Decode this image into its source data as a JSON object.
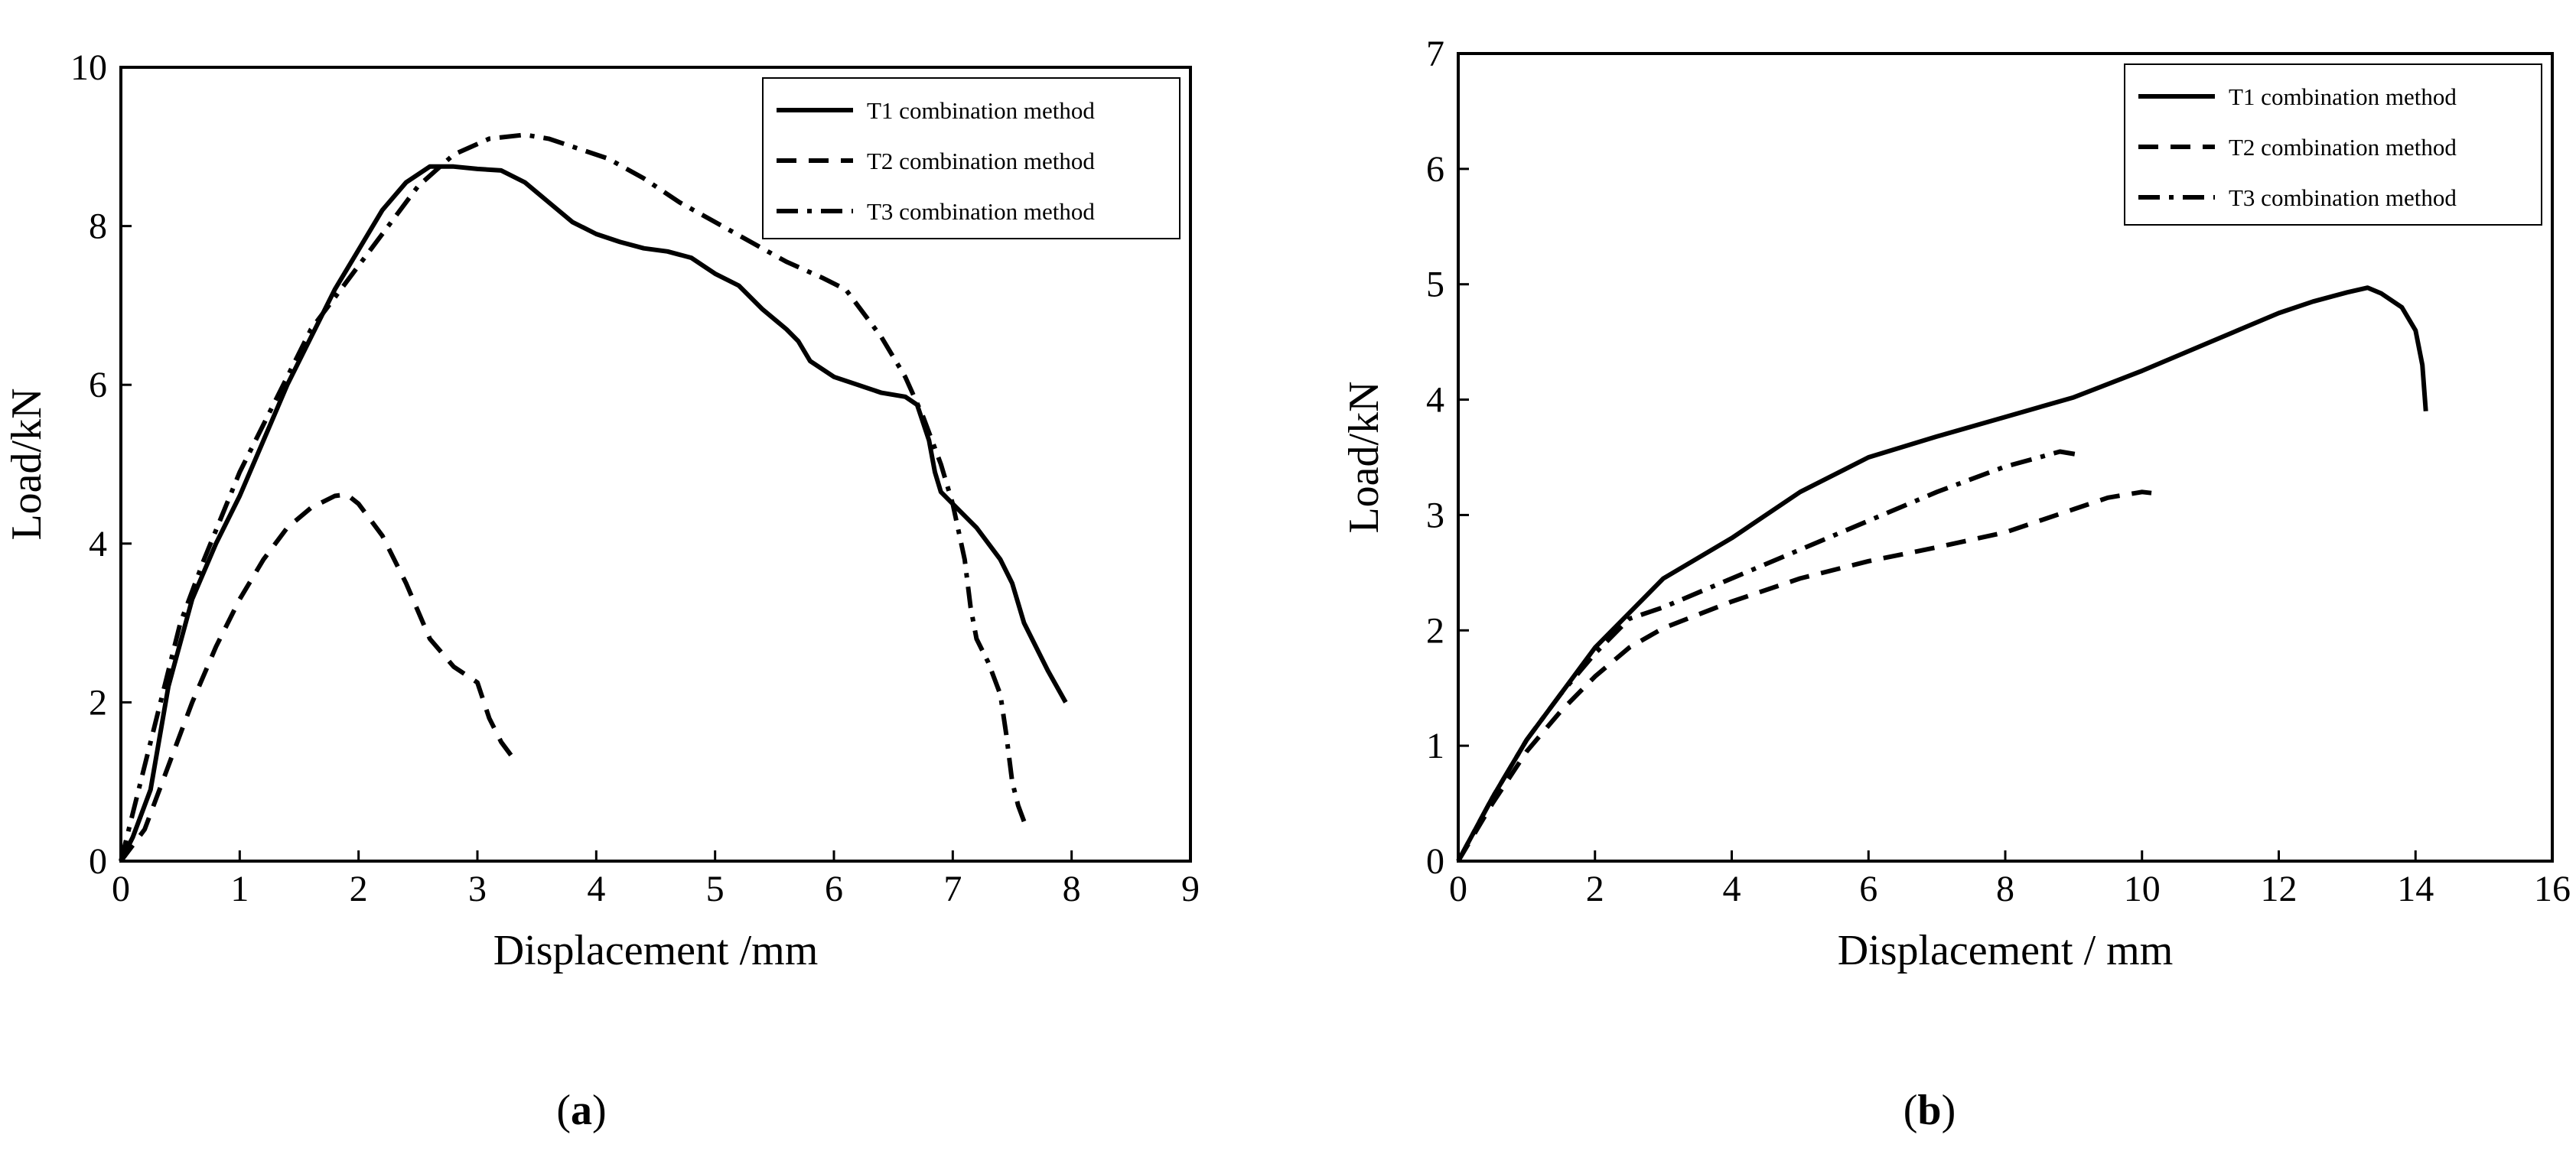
{
  "chart_data": [
    {
      "type": "line",
      "caption_open": "(",
      "caption_letter": "a",
      "caption_close": ")",
      "xlabel": "Displacement /mm",
      "ylabel": "Load/kN",
      "xlim": [
        0,
        9
      ],
      "ylim": [
        0,
        10
      ],
      "xticks": [
        0,
        1,
        2,
        3,
        4,
        5,
        6,
        7,
        8,
        9
      ],
      "yticks": [
        0,
        2,
        4,
        6,
        8,
        10
      ],
      "legend": "top-right",
      "grid": false,
      "series": [
        {
          "name": "T1 combination method",
          "style": "solid",
          "x": [
            0,
            0.1,
            0.25,
            0.4,
            0.6,
            0.8,
            1.0,
            1.2,
            1.4,
            1.6,
            1.8,
            2.0,
            2.2,
            2.4,
            2.6,
            2.8,
            3.0,
            3.2,
            3.4,
            3.6,
            3.8,
            4.0,
            4.2,
            4.4,
            4.6,
            4.8,
            4.9,
            5.0,
            5.2,
            5.4,
            5.6,
            5.7,
            5.8,
            6.0,
            6.2,
            6.4,
            6.6,
            6.7,
            6.8,
            6.85,
            6.9,
            7.0,
            7.2,
            7.4,
            7.5,
            7.6,
            7.8,
            7.95
          ],
          "y": [
            0,
            0.3,
            0.9,
            2.2,
            3.3,
            4.0,
            4.6,
            5.3,
            6.0,
            6.6,
            7.2,
            7.7,
            8.2,
            8.55,
            8.75,
            8.75,
            8.72,
            8.7,
            8.55,
            8.3,
            8.05,
            7.9,
            7.8,
            7.72,
            7.68,
            7.6,
            7.5,
            7.4,
            7.25,
            6.95,
            6.7,
            6.55,
            6.3,
            6.1,
            6.0,
            5.9,
            5.85,
            5.75,
            5.3,
            4.9,
            4.65,
            4.5,
            4.2,
            3.8,
            3.5,
            3.0,
            2.4,
            2.0
          ]
        },
        {
          "name": "T2 combination method",
          "style": "dashed",
          "x": [
            0,
            0.2,
            0.4,
            0.6,
            0.8,
            1.0,
            1.2,
            1.4,
            1.6,
            1.8,
            1.9,
            2.0,
            2.2,
            2.4,
            2.6,
            2.8,
            3.0,
            3.1,
            3.2,
            3.3
          ],
          "y": [
            0,
            0.4,
            1.2,
            2.0,
            2.7,
            3.3,
            3.8,
            4.2,
            4.45,
            4.6,
            4.62,
            4.5,
            4.1,
            3.5,
            2.8,
            2.45,
            2.25,
            1.8,
            1.5,
            1.3
          ]
        },
        {
          "name": "T3 combination method",
          "style": "dashdot",
          "x": [
            0,
            0.1,
            0.3,
            0.5,
            0.7,
            1.0,
            1.3,
            1.6,
            1.9,
            2.2,
            2.5,
            2.8,
            3.1,
            3.4,
            3.6,
            3.8,
            4.1,
            4.4,
            4.7,
            5.0,
            5.3,
            5.6,
            5.9,
            6.1,
            6.2,
            6.4,
            6.6,
            6.75,
            6.9,
            7.0,
            7.1,
            7.15,
            7.2,
            7.3,
            7.4,
            7.45,
            7.5,
            7.55,
            7.6
          ],
          "y": [
            0,
            0.6,
            1.8,
            3.0,
            3.8,
            4.9,
            5.8,
            6.7,
            7.3,
            7.9,
            8.5,
            8.9,
            9.1,
            9.15,
            9.1,
            9.0,
            8.85,
            8.6,
            8.3,
            8.05,
            7.8,
            7.55,
            7.35,
            7.2,
            7.0,
            6.6,
            6.1,
            5.6,
            5.0,
            4.5,
            3.8,
            3.2,
            2.8,
            2.5,
            2.1,
            1.6,
            1.0,
            0.7,
            0.5
          ]
        }
      ]
    },
    {
      "type": "line",
      "caption_open": "(",
      "caption_letter": "b",
      "caption_close": ")",
      "xlabel": "Displacement / mm",
      "ylabel": "Load/kN",
      "xlim": [
        0,
        16
      ],
      "ylim": [
        0,
        7
      ],
      "xticks": [
        0,
        2,
        4,
        6,
        8,
        10,
        12,
        14,
        16
      ],
      "yticks": [
        0,
        1,
        2,
        3,
        4,
        5,
        6,
        7
      ],
      "legend": "top-right",
      "grid": false,
      "series": [
        {
          "name": "T1 combination method",
          "style": "solid",
          "x": [
            0,
            0.5,
            1.0,
            1.5,
            2.0,
            2.5,
            3.0,
            4.0,
            5.0,
            6.0,
            7.0,
            8.0,
            9.0,
            10.0,
            11.0,
            12.0,
            12.5,
            13.0,
            13.3,
            13.5,
            13.8,
            14.0,
            14.1,
            14.15
          ],
          "y": [
            0,
            0.55,
            1.05,
            1.45,
            1.85,
            2.15,
            2.45,
            2.8,
            3.2,
            3.5,
            3.68,
            3.85,
            4.02,
            4.25,
            4.5,
            4.75,
            4.85,
            4.93,
            4.97,
            4.92,
            4.8,
            4.6,
            4.3,
            3.9
          ]
        },
        {
          "name": "T2 combination method",
          "style": "dashed",
          "x": [
            0,
            0.5,
            1.0,
            1.5,
            2.0,
            2.5,
            3.0,
            4.0,
            5.0,
            6.0,
            7.0,
            8.0,
            8.5,
            9.0,
            9.5,
            10.0,
            10.3
          ],
          "y": [
            0,
            0.5,
            0.95,
            1.3,
            1.6,
            1.85,
            2.02,
            2.25,
            2.45,
            2.6,
            2.72,
            2.85,
            2.95,
            3.05,
            3.15,
            3.2,
            3.18
          ]
        },
        {
          "name": "T3 combination method",
          "style": "dashdot",
          "x": [
            0,
            0.5,
            1.0,
            1.5,
            2.0,
            2.5,
            3.0,
            4.0,
            5.0,
            6.0,
            7.0,
            8.0,
            8.5,
            8.8,
            9.1
          ],
          "y": [
            0,
            0.55,
            1.05,
            1.45,
            1.8,
            2.1,
            2.2,
            2.45,
            2.7,
            2.95,
            3.2,
            3.42,
            3.5,
            3.55,
            3.52
          ]
        }
      ]
    }
  ]
}
